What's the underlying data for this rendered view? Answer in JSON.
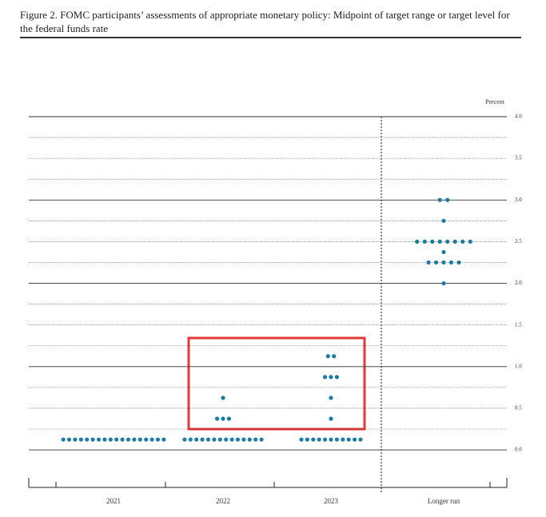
{
  "chart_data": {
    "type": "dotplot",
    "title": "Figure 2.  FOMC participants’ assessments of appropriate monetary policy: Midpoint of target range or target level for the federal funds rate",
    "y_label": "Percent",
    "categories": [
      "2021",
      "2022",
      "2023",
      "Longer run"
    ],
    "color": "#1b7ba6",
    "dots": [
      [
        {
          "y": 0.125,
          "count": 18
        }
      ],
      [
        {
          "y": 0.625,
          "count": 1
        },
        {
          "y": 0.375,
          "count": 3
        },
        {
          "y": 0.125,
          "count": 14
        }
      ],
      [
        {
          "y": 1.125,
          "count": 2
        },
        {
          "y": 0.875,
          "count": 3
        },
        {
          "y": 0.625,
          "count": 1
        },
        {
          "y": 0.375,
          "count": 1
        },
        {
          "y": 0.125,
          "count": 11
        }
      ],
      [
        {
          "y": 3.0,
          "count": 2
        },
        {
          "y": 2.75,
          "count": 1
        },
        {
          "y": 2.5,
          "count": 8
        },
        {
          "y": 2.375,
          "count": 1
        },
        {
          "y": 2.25,
          "count": 5
        },
        {
          "y": 2.0,
          "count": 1
        }
      ]
    ],
    "ylim": [
      -0.45,
      4.0
    ],
    "yticks": [
      {
        "value": 0,
        "label": "0.0"
      },
      0.5,
      {
        "value": 1,
        "label": "1.0"
      },
      1.5,
      {
        "value": 2,
        "label": "2.0"
      },
      2.5,
      {
        "value": 3,
        "label": "3.0"
      },
      3.5,
      {
        "value": 4,
        "label": "4.0"
      }
    ],
    "minor_yticks": [
      0.25,
      0.75,
      1.25,
      1.75,
      2.25,
      2.75,
      3.25,
      3.75
    ],
    "grid": true
  }
}
